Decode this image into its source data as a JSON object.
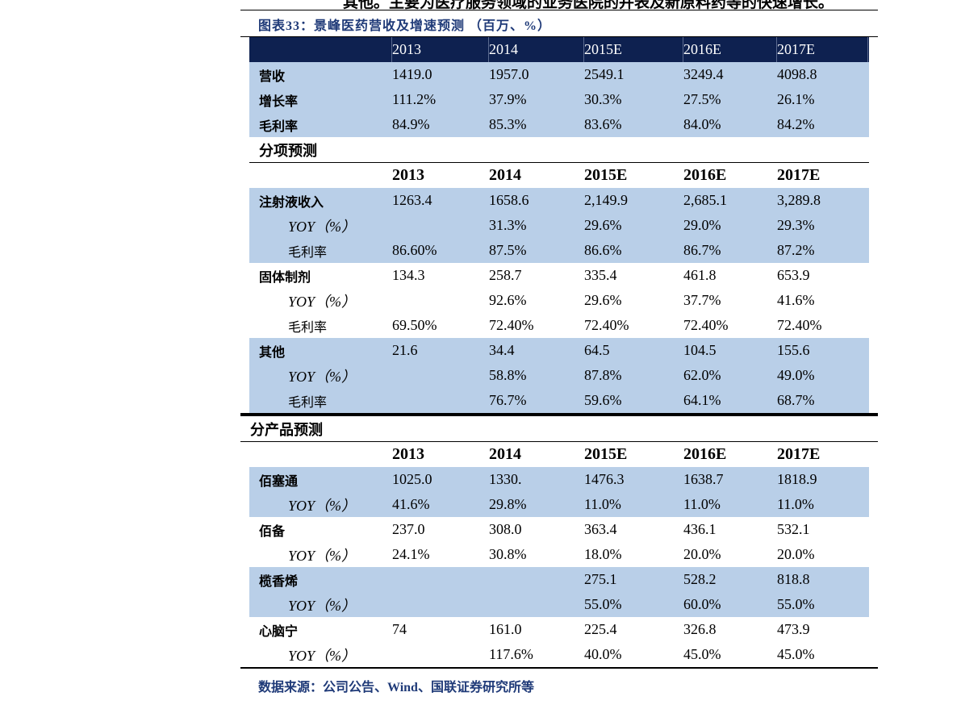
{
  "intro": "其他。主要为医疗服务领域的业务医院的并表及新原料药等的快速增长。",
  "title": "图表33：景峰医药营收及增速预测 （百万、%）",
  "sections": [
    {
      "header": [
        "2013",
        "2014",
        "2015E",
        "2016E",
        "2017E"
      ],
      "groups": [
        {
          "label": "营收",
          "values": [
            "1419.0",
            "1957.0",
            "2549.1",
            "3249.4",
            "4098.8"
          ]
        },
        {
          "label": "增长率",
          "values": [
            "111.2%",
            "37.9%",
            "30.3%",
            "27.5%",
            "26.1%"
          ]
        },
        {
          "label": "毛利率",
          "values": [
            "84.9%",
            "85.3%",
            "83.6%",
            "84.0%",
            "84.2%"
          ]
        }
      ]
    },
    {
      "title": "分项预测",
      "header": [
        "2013",
        "2014",
        "2015E",
        "2016E",
        "2017E"
      ],
      "groups": [
        {
          "label": "注射液收入",
          "values": [
            "1263.4",
            "1658.6",
            "2,149.9",
            "2,685.1",
            "3,289.8"
          ],
          "sub": [
            {
              "label": "YOY（%）",
              "values": [
                null,
                "31.3%",
                "29.6%",
                "29.0%",
                "29.3%"
              ]
            },
            {
              "label": "毛利率",
              "values": [
                "86.60%",
                "87.5%",
                "86.6%",
                "86.7%",
                "87.2%"
              ]
            }
          ]
        },
        {
          "label": "固体制剂",
          "values": [
            "134.3",
            "258.7",
            "335.4",
            "461.8",
            "653.9"
          ],
          "sub": [
            {
              "label": "YOY（%）",
              "values": [
                null,
                "92.6%",
                "29.6%",
                "37.7%",
                "41.6%"
              ]
            },
            {
              "label": "毛利率",
              "values": [
                "69.50%",
                "72.40%",
                "72.40%",
                "72.40%",
                "72.40%"
              ]
            }
          ]
        },
        {
          "label": "其他",
          "values": [
            "21.6",
            "34.4",
            "64.5",
            "104.5",
            "155.6"
          ],
          "sub": [
            {
              "label": "YOY（%）",
              "values": [
                null,
                "58.8%",
                "87.8%",
                "62.0%",
                "49.0%"
              ]
            },
            {
              "label": "毛利率",
              "values": [
                null,
                "76.7%",
                "59.6%",
                "64.1%",
                "68.7%"
              ]
            }
          ]
        }
      ]
    },
    {
      "title": "分产品预测",
      "header": [
        "2013",
        "2014",
        "2015E",
        "2016E",
        "2017E"
      ],
      "groups": [
        {
          "label": "佰塞通",
          "values": [
            "1025.0",
            "1330.",
            "1476.3",
            "1638.7",
            "1818.9"
          ],
          "sub": [
            {
              "label": "YOY（%）",
              "values": [
                "41.6%",
                "29.8%",
                "11.0%",
                "11.0%",
                "11.0%"
              ]
            }
          ]
        },
        {
          "label": "佰备",
          "values": [
            "237.0",
            "308.0",
            "363.4",
            "436.1",
            "532.1"
          ],
          "sub": [
            {
              "label": "YOY（%）",
              "values": [
                "24.1%",
                "30.8%",
                "18.0%",
                "20.0%",
                "20.0%"
              ]
            }
          ]
        },
        {
          "label": "榄香烯",
          "values": [
            null,
            null,
            "275.1",
            "528.2",
            "818.8"
          ],
          "sub": [
            {
              "label": "YOY（%）",
              "values": [
                null,
                null,
                "55.0%",
                "60.0%",
                "55.0%"
              ]
            }
          ]
        },
        {
          "label": "心脑宁",
          "values": [
            "74",
            "161.0",
            "225.4",
            "326.8",
            "473.9"
          ],
          "sub": [
            {
              "label": "YOY（%）",
              "values": [
                null,
                "117.6%",
                "40.0%",
                "45.0%",
                "45.0%"
              ]
            }
          ]
        }
      ]
    }
  ],
  "source": "数据来源：公司公告、Wind、国联证券研究所等"
}
